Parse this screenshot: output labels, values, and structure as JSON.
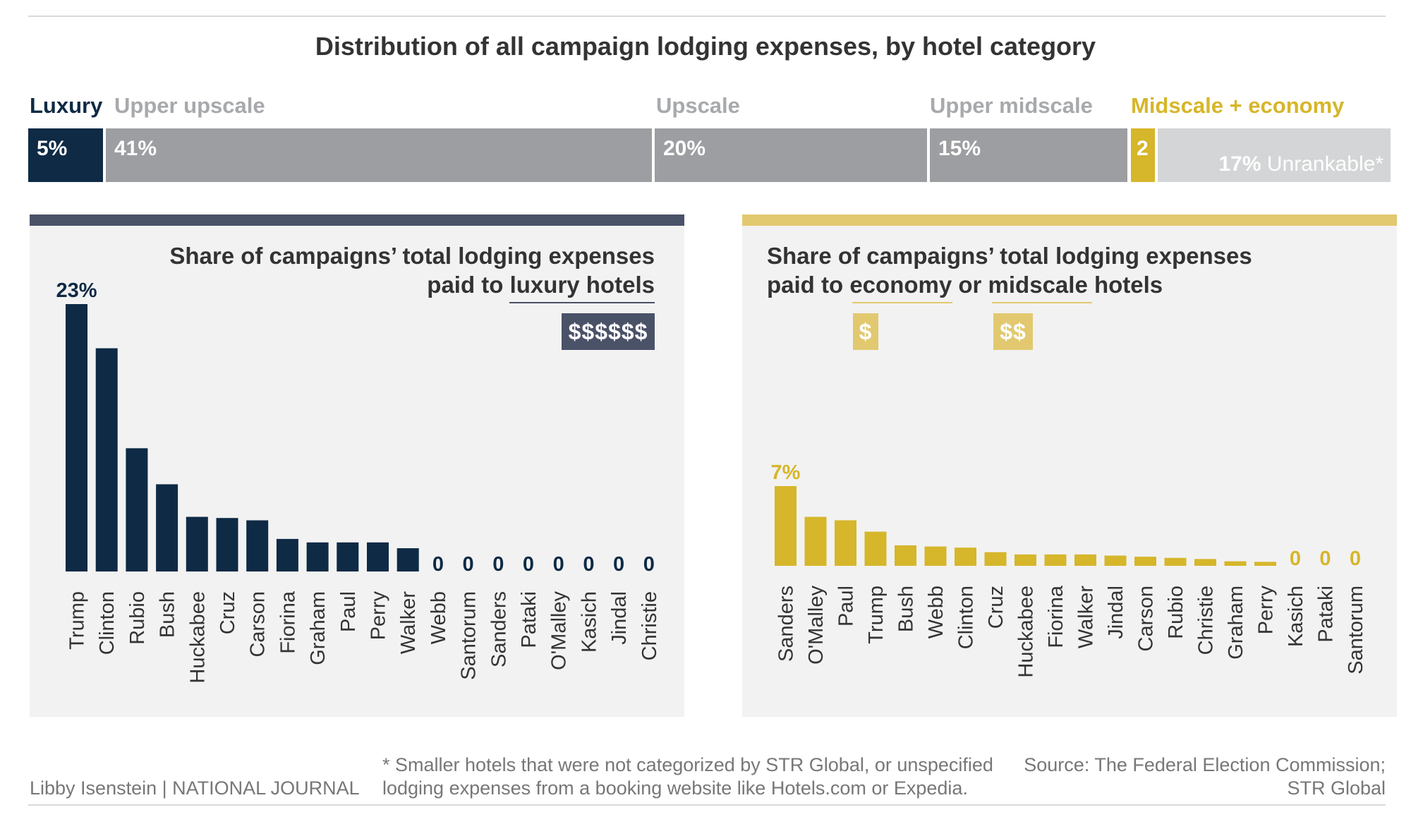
{
  "title": "Distribution of all campaign lodging expenses, by hotel category",
  "categories": [
    {
      "label": "Luxury",
      "color": "#0e2a45"
    },
    {
      "label": "Upper upscale",
      "color": "#a7a9ac"
    },
    {
      "label": "Upscale",
      "color": "#a7a9ac"
    },
    {
      "label": "Upper midscale",
      "color": "#a7a9ac"
    },
    {
      "label": "Midscale + economy",
      "color": "#d6b62a"
    }
  ],
  "distribution": [
    {
      "value_label": "5%",
      "color": "#0e2a45"
    },
    {
      "value_label": "41%",
      "color": "#9d9ea1"
    },
    {
      "value_label": "20%",
      "color": "#9d9ea1"
    },
    {
      "value_label": "15%",
      "color": "#9d9ea1"
    },
    {
      "value_label": "2",
      "color": "#d6b62a"
    },
    {
      "value_label": "17%",
      "extra_label": "Unrankable*",
      "color": "#d4d5d6"
    }
  ],
  "left_panel": {
    "title_line1": "Share of campaigns’ total lodging expenses",
    "title_line2_prefix": "paid to ",
    "title_line2_underlined": "luxury hotels",
    "badge": "$$$$$$",
    "accent": "#4a5268",
    "bar_color": "#0e2a45",
    "top_label": "23%"
  },
  "right_panel": {
    "title_line1": "Share of campaigns’ total lodging expenses",
    "title_line2_prefix": "paid to ",
    "title_line2_underlined_1": "economy",
    "title_line2_middle": " or ",
    "title_line2_underlined_2": "midscale",
    "title_line2_suffix": " hotels",
    "badge_1": "$",
    "badge_2": "$$",
    "accent": "#e2c970",
    "badge_color": "#e2c970",
    "bar_color": "#d6b62a",
    "top_label": "7%"
  },
  "chart_data": [
    {
      "type": "bar",
      "title": "Share of campaigns’ total lodging expenses paid to luxury hotels",
      "categories": [
        "Trump",
        "Clinton",
        "Rubio",
        "Bush",
        "Huckabee",
        "Cruz",
        "Carson",
        "Fiorina",
        "Graham",
        "Paul",
        "Perry",
        "Walker",
        "Webb",
        "Santorum",
        "Sanders",
        "Pataki",
        "O'Malley",
        "Kasich",
        "Jindal",
        "Christie"
      ],
      "values": [
        23,
        19.2,
        10.6,
        7.5,
        4.7,
        4.6,
        4.4,
        2.8,
        2.5,
        2.5,
        2.5,
        2.0,
        0,
        0,
        0,
        0,
        0,
        0,
        0,
        0
      ],
      "ylim": [
        0,
        23
      ]
    },
    {
      "type": "bar",
      "title": "Share of campaigns’ total lodging expenses paid to economy or midscale hotels",
      "categories": [
        "Sanders",
        "O'Malley",
        "Paul",
        "Trump",
        "Bush",
        "Webb",
        "Clinton",
        "Cruz",
        "Huckabee",
        "Fiorina",
        "Walker",
        "Jindal",
        "Carson",
        "Rubio",
        "Christie",
        "Graham",
        "Perry",
        "Kasich",
        "Pataki",
        "Santorum"
      ],
      "values": [
        7,
        4.3,
        4.0,
        3.0,
        1.8,
        1.7,
        1.6,
        1.2,
        1.0,
        1.0,
        1.0,
        0.9,
        0.8,
        0.7,
        0.6,
        0.4,
        0.35,
        0,
        0,
        0
      ],
      "ylim": [
        0,
        7
      ]
    }
  ],
  "footer": {
    "credit": "Libby Isenstein | NATIONAL JOURNAL",
    "footnote_line1": "* Smaller hotels that were not categorized by STR Global, or unspecified",
    "footnote_line2": "lodging expenses from a booking website like Hotels.com or Expedia.",
    "source_line1": "Source: The Federal Election Commission;",
    "source_line2": "STR Global"
  }
}
